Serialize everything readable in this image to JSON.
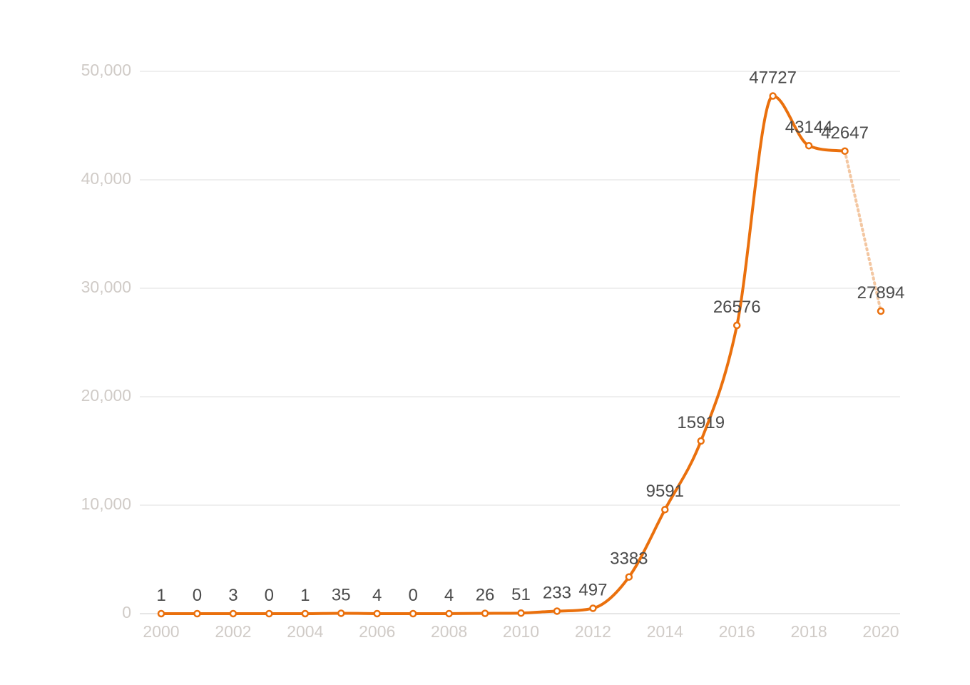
{
  "chart_data": {
    "type": "line",
    "title": "",
    "xlabel": "",
    "ylabel": "",
    "x": [
      2000,
      2001,
      2002,
      2003,
      2004,
      2005,
      2006,
      2007,
      2008,
      2009,
      2010,
      2011,
      2012,
      2013,
      2014,
      2015,
      2016,
      2017,
      2018,
      2019,
      2020
    ],
    "series": [
      {
        "values": [
          1,
          0,
          3,
          0,
          1,
          35,
          4,
          0,
          4,
          26,
          51,
          233,
          497,
          3383,
          9591,
          15919,
          26576,
          47727,
          43144,
          42647,
          27894
        ],
        "labels": [
          "1",
          "0",
          "3",
          "0",
          "1",
          "35",
          "4",
          "0",
          "4",
          "26",
          "51",
          "233",
          "497",
          "3383",
          "9591",
          "15919",
          "26576",
          "47727",
          "43144",
          "42647",
          "27894"
        ],
        "color": "#ea700d",
        "projected_from_index": 19,
        "projected_color": "#f3c7a2"
      }
    ],
    "ylim": [
      0,
      50000
    ],
    "xlim": [
      2000,
      2020
    ],
    "y_ticks": [
      0,
      10000,
      20000,
      30000,
      40000,
      50000
    ],
    "y_tick_labels": [
      "0",
      "10,000",
      "20,000",
      "30,000",
      "40,000",
      "50,000"
    ],
    "x_ticks": [
      2000,
      2002,
      2004,
      2006,
      2008,
      2010,
      2012,
      2014,
      2016,
      2018,
      2020
    ],
    "x_tick_labels": [
      "2000",
      "2002",
      "2004",
      "2006",
      "2008",
      "2010",
      "2012",
      "2014",
      "2016",
      "2018",
      "2020"
    ],
    "grid": true,
    "legend": "none",
    "colors": {
      "line": "#ea700d",
      "projection": "#f3c7a2",
      "grid": "#efefef",
      "tick_text": "#d0cbc7",
      "label_text": "#4b4b4b"
    }
  }
}
